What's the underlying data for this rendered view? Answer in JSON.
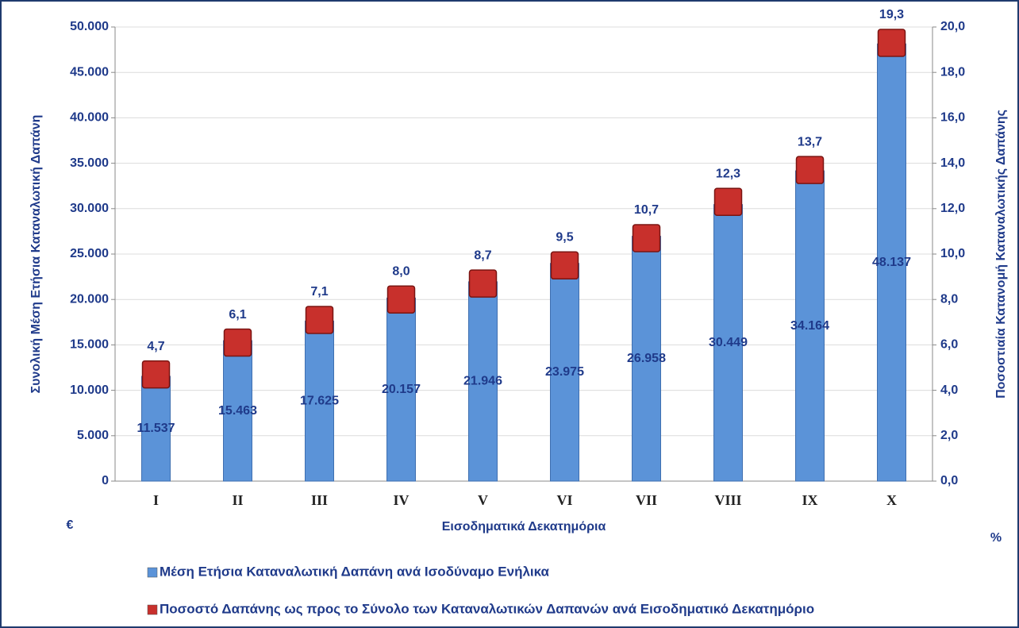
{
  "chart_data": {
    "type": "bar",
    "title_y": "Συνολική Μέση Ετήσια Καταναλωτική Δαπάνη",
    "title_y2": "Ποσοστιαία Κατανομή Καταναλωτικής Δαπάνης",
    "title_x": "Εισοδηματικά Δεκατημόρια",
    "unit_y": "€",
    "unit_y2": "%",
    "categories": [
      "I",
      "II",
      "III",
      "IV",
      "V",
      "VI",
      "VII",
      "VIII",
      "IX",
      "X"
    ],
    "series": [
      {
        "name": "Μέση Ετήσια Καταναλωτική Δαπάνη ανά Ισοδύναμο Ενήλικα",
        "type": "bar",
        "axis": "y",
        "color": "#5b93d8",
        "values": [
          11537,
          15463,
          17625,
          20157,
          21946,
          23975,
          26958,
          30449,
          34164,
          48137
        ],
        "value_labels": [
          "11.537",
          "15.463",
          "17.625",
          "20.157",
          "21.946",
          "23.975",
          "26.958",
          "30.449",
          "34.164",
          "48.137"
        ]
      },
      {
        "name": "Ποσοστό Δαπάνης ως προς το Σύνολο των Καταναλωτικών Δαπανών ανά Εισοδηματικό Δεκατημόριο",
        "type": "marker",
        "axis": "y2",
        "color": "#c8302c",
        "values": [
          4.7,
          6.1,
          7.1,
          8.0,
          8.7,
          9.5,
          10.7,
          12.3,
          13.7,
          19.3
        ],
        "value_labels": [
          "4,7",
          "6,1",
          "7,1",
          "8,0",
          "8,7",
          "9,5",
          "10,7",
          "12,3",
          "13,7",
          "19,3"
        ]
      }
    ],
    "ylim": [
      0,
      50000
    ],
    "yticks": [
      0,
      {
        "value": 5000,
        "label": "5.000"
      },
      {
        "value": 10000,
        "label": "10.000"
      },
      {
        "value": 15000,
        "label": "15.000"
      },
      {
        "value": 20000,
        "label": "20.000"
      },
      {
        "value": 25000,
        "label": "25.000"
      },
      {
        "value": 30000,
        "label": "30.000"
      },
      {
        "value": 35000,
        "label": "35.000"
      },
      {
        "value": 40000,
        "label": "40.000"
      },
      {
        "value": 45000,
        "label": "45.000"
      },
      {
        "value": 50000,
        "label": "50.000"
      }
    ],
    "y2lim": [
      0,
      20
    ],
    "y2ticks": [
      {
        "value": 0,
        "label": "0,0"
      },
      {
        "value": 2,
        "label": "2,0"
      },
      {
        "value": 4,
        "label": "4,0"
      },
      {
        "value": 6,
        "label": "6,0"
      },
      {
        "value": 8,
        "label": "8,0"
      },
      {
        "value": 10,
        "label": "10,0"
      },
      {
        "value": 12,
        "label": "12,0"
      },
      {
        "value": 14,
        "label": "14,0"
      },
      {
        "value": 16,
        "label": "16,0"
      },
      {
        "value": 18,
        "label": "18,0"
      },
      {
        "value": 20,
        "label": "20,0"
      }
    ],
    "grid": true
  }
}
